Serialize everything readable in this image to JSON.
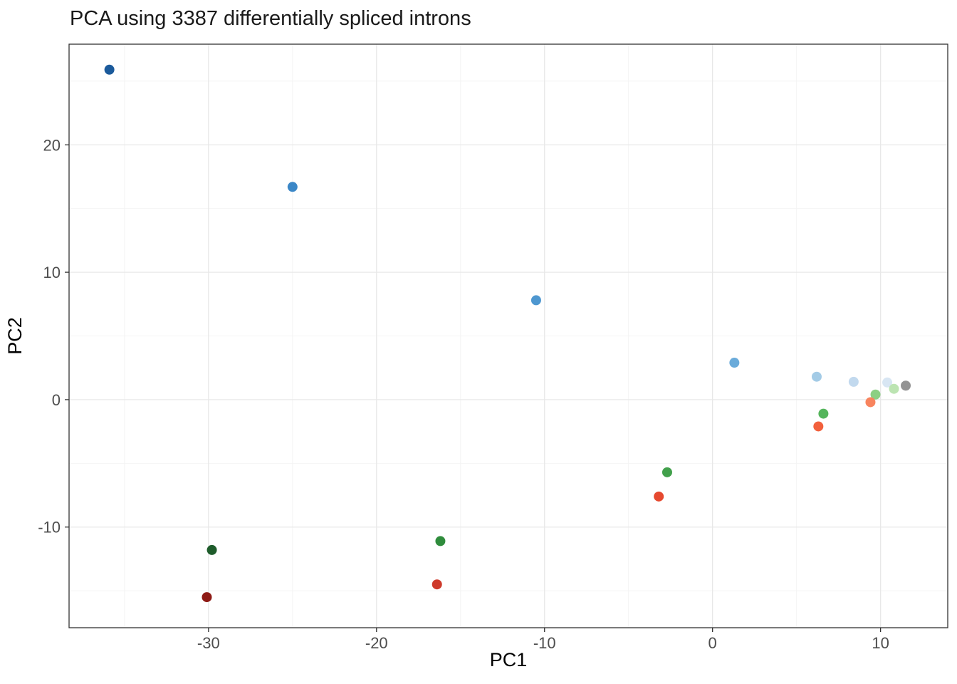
{
  "figure": {
    "title": "PCA using 3387 differentially spliced introns"
  },
  "chart_data": {
    "type": "scatter",
    "title": "PCA using 3387 differentially spliced introns",
    "xlabel": "PC1",
    "ylabel": "PC2",
    "xlim": [
      -38.3,
      14.0
    ],
    "ylim": [
      -17.9,
      27.9
    ],
    "x_ticks": [
      -30,
      -20,
      -10,
      0,
      10
    ],
    "y_ticks": [
      -10,
      0,
      10,
      20
    ],
    "x_minor_ticks": [
      -35,
      -25,
      -15,
      -5,
      5
    ],
    "y_minor_ticks": [
      -15,
      -5,
      5,
      15,
      25
    ],
    "grid": "on",
    "legend": "none",
    "point_radius": 7,
    "styles": {
      "panel_background": "#FFFFFF",
      "panel_border": "#333333",
      "grid_major": "#E8E8E8",
      "grid_minor": "#F4F4F4",
      "tick_color": "#333333",
      "tick_label_color": "#4D4D4D",
      "axis_title_color": "#000000",
      "title_color": "#1A1A1A"
    },
    "points": [
      {
        "x": -35.9,
        "y": 25.9,
        "color": "#1B5A9B"
      },
      {
        "x": -25.0,
        "y": 16.7,
        "color": "#3B87C7"
      },
      {
        "x": -10.5,
        "y": 7.8,
        "color": "#4E97D0"
      },
      {
        "x": 1.3,
        "y": 2.9,
        "color": "#6AABDA"
      },
      {
        "x": 6.2,
        "y": 1.8,
        "color": "#A3CBE6"
      },
      {
        "x": 8.4,
        "y": 1.4,
        "color": "#C2D9EE"
      },
      {
        "x": 10.4,
        "y": 1.35,
        "color": "#D8E6F3"
      },
      {
        "x": -29.8,
        "y": -11.8,
        "color": "#1E5C2B"
      },
      {
        "x": -16.2,
        "y": -11.1,
        "color": "#2F8C3C"
      },
      {
        "x": -2.7,
        "y": -5.7,
        "color": "#41A04B"
      },
      {
        "x": 6.6,
        "y": -1.1,
        "color": "#55B55C"
      },
      {
        "x": 9.7,
        "y": 0.4,
        "color": "#8BD083"
      },
      {
        "x": 10.8,
        "y": 0.85,
        "color": "#BCE4B2"
      },
      {
        "x": -30.1,
        "y": -15.5,
        "color": "#8E1A15"
      },
      {
        "x": -16.4,
        "y": -14.5,
        "color": "#CE3A2B"
      },
      {
        "x": -3.2,
        "y": -7.6,
        "color": "#E6492F"
      },
      {
        "x": 6.3,
        "y": -2.1,
        "color": "#F2603C"
      },
      {
        "x": 9.4,
        "y": -0.2,
        "color": "#F8845E"
      },
      {
        "x": 11.5,
        "y": 1.1,
        "color": "#939393"
      }
    ]
  }
}
